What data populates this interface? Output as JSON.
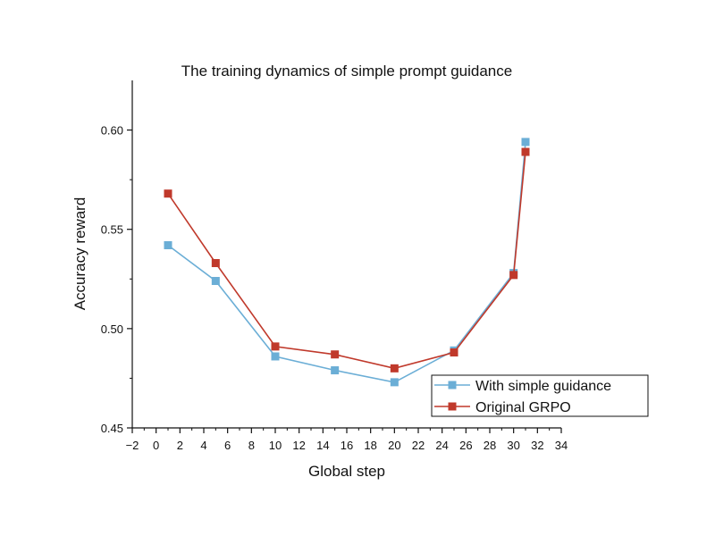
{
  "chart_data": {
    "type": "line",
    "title": "The training dynamics of simple prompt guidance",
    "xlabel": "Global step",
    "ylabel": "Accuracy reward",
    "xlim": [
      -2,
      34
    ],
    "ylim": [
      0.45,
      0.625
    ],
    "xticks": [
      "−2",
      "0",
      "2",
      "4",
      "6",
      "8",
      "10",
      "12",
      "14",
      "16",
      "18",
      "20",
      "22",
      "24",
      "26",
      "28",
      "30",
      "32",
      "34"
    ],
    "xtick_values": [
      -2,
      0,
      2,
      4,
      6,
      8,
      10,
      12,
      14,
      16,
      18,
      20,
      22,
      24,
      26,
      28,
      30,
      32,
      34
    ],
    "yticks": [
      "0.45",
      "0.50",
      "0.55",
      "0.60"
    ],
    "ytick_values": [
      0.45,
      0.5,
      0.55,
      0.6
    ],
    "legend_position": "bottom-right",
    "series": [
      {
        "name": "With simple guidance",
        "color": "#6baed6",
        "x": [
          1,
          5,
          10,
          15,
          20,
          25,
          30,
          31
        ],
        "values": [
          0.542,
          0.524,
          0.486,
          0.479,
          0.473,
          0.489,
          0.528,
          0.594
        ]
      },
      {
        "name": "Original GRPO",
        "color": "#c0392b",
        "x": [
          1,
          5,
          10,
          15,
          20,
          25,
          30,
          31
        ],
        "values": [
          0.568,
          0.533,
          0.491,
          0.487,
          0.48,
          0.488,
          0.527,
          0.589
        ]
      }
    ]
  }
}
